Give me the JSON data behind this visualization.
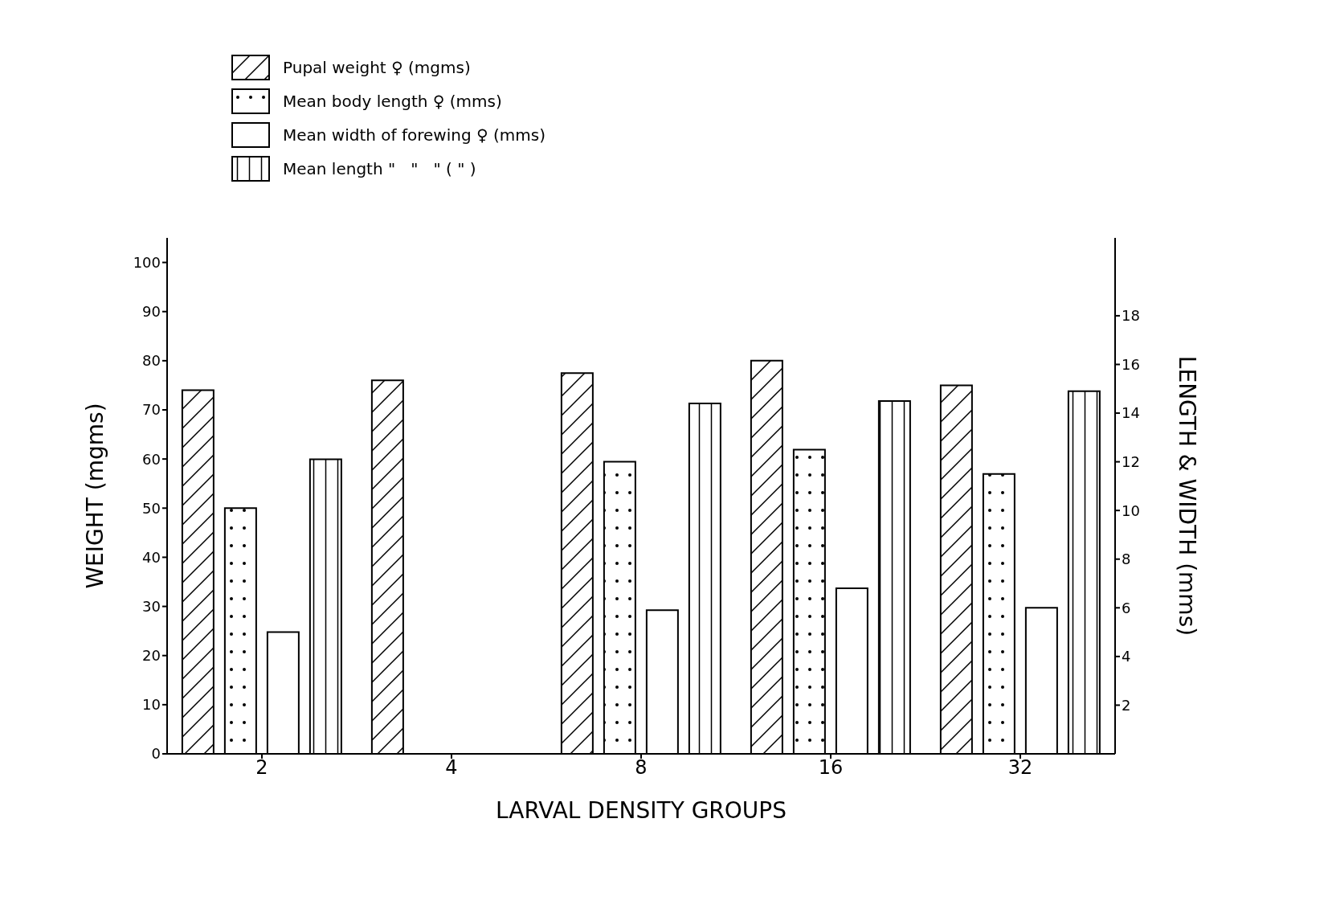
{
  "chart_data": {
    "type": "bar",
    "xlabel": "LARVAL DENSITY GROUPS",
    "ylabel": "WEIGHT (mgms)",
    "y2label": "LENGTH & WIDTH (mms)",
    "categories": [
      "2",
      "4",
      "8",
      "16",
      "32"
    ],
    "series": [
      {
        "name": "Pupal weight ♀ (mgms)",
        "color": "#000000",
        "values": [
          74,
          76,
          77.5,
          80,
          75
        ]
      },
      {
        "name": "Mean body length ♀ (mms)",
        "color": "#000000",
        "axis": "y2",
        "values": [
          10.1,
          null,
          12.0,
          12.5,
          11.5
        ]
      },
      {
        "name": "Mean width of forewing ♀ (mms)",
        "color": "#000000",
        "axis": "y2",
        "values": [
          5.0,
          null,
          5.9,
          6.8,
          6.0
        ]
      },
      {
        "name": "Mean length \"   \"   \" ( \" )",
        "color": "#000000",
        "axis": "y2",
        "values": [
          12.1,
          null,
          14.4,
          14.5,
          14.9
        ]
      }
    ],
    "ylim": [
      0,
      105
    ],
    "yticks": [
      0,
      10,
      20,
      30,
      40,
      50,
      60,
      70,
      80,
      90,
      100
    ],
    "y2lim": [
      0,
      21.2
    ],
    "y2ticks": [
      2,
      4,
      6,
      8,
      10,
      12,
      14,
      16,
      18
    ],
    "grid": false,
    "legend": "top left"
  }
}
